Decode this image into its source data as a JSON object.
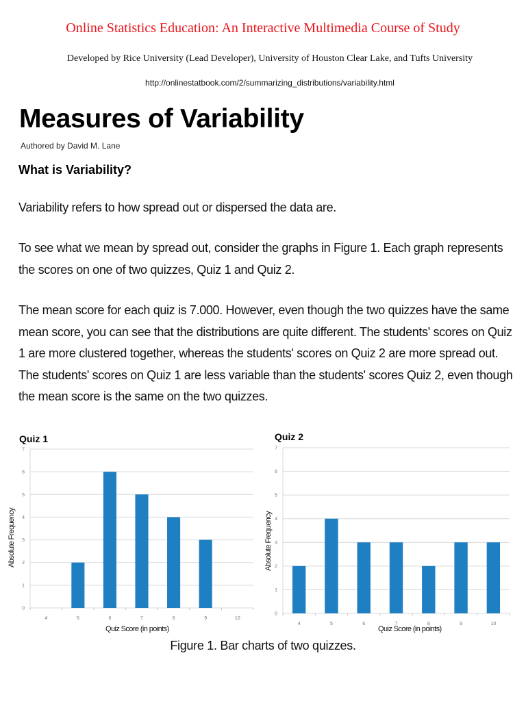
{
  "header": {
    "site_title": "Online Statistics Education: An Interactive Multimedia Course of Study",
    "developed_by": "Developed by Rice University (Lead Developer), University of Houston Clear Lake, and Tufts University",
    "url": "http://onlinestatbook.com/2/summarizing_distributions/variability.html"
  },
  "article": {
    "title": "Measures of Variability",
    "author": "Authored by David M. Lane",
    "section_heading": "What is Variability?",
    "paragraphs": [
      "Variability refers to how spread out or dispersed the data are.",
      "To see what we mean by spread out, consider the graphs in Figure 1. Each graph represents the scores on one of two quizzes, Quiz 1 and Quiz 2.",
      "The mean score for each quiz is 7.000. However, even though the two quizzes have the same mean score, you can see that the distributions are quite different. The students' scores on Quiz 1 are more clustered together, whereas the students' scores on Quiz 2 are more spread out. The students' scores on Quiz 1 are less variable than the students' scores Quiz 2, even though the mean score is the same on the two quizzes."
    ],
    "figure_caption": "Figure 1. Bar charts of two quizzes."
  },
  "colors": {
    "site_title": "#e8141c",
    "bar": "#1f7fc3",
    "gridline": "#d9d9d9",
    "tick_label": "#777777"
  },
  "chart_data": [
    {
      "type": "bar",
      "title": "Quiz 1",
      "xlabel": "Quiz Score (in points)",
      "ylabel": "Absolute Frequency",
      "categories": [
        "4",
        "5",
        "6",
        "7",
        "8",
        "9",
        "10"
      ],
      "values": [
        0,
        2,
        6,
        5,
        4,
        3,
        0
      ],
      "yticks": [
        "0",
        "1",
        "2",
        "3",
        "4",
        "5",
        "6",
        "7"
      ],
      "ylim": [
        0,
        7
      ],
      "grid": true,
      "legend": "none"
    },
    {
      "type": "bar",
      "title": "Quiz 2",
      "xlabel": "Quiz Score (in points)",
      "ylabel": "Absolute Frequency",
      "categories": [
        "4",
        "5",
        "6",
        "7",
        "8",
        "9",
        "10"
      ],
      "values": [
        2,
        4,
        3,
        3,
        2,
        3,
        3
      ],
      "yticks": [
        "0",
        "1",
        "2",
        "3",
        "4",
        "5",
        "6",
        "7"
      ],
      "ylim": [
        0,
        7
      ],
      "grid": true,
      "legend": "none"
    }
  ]
}
